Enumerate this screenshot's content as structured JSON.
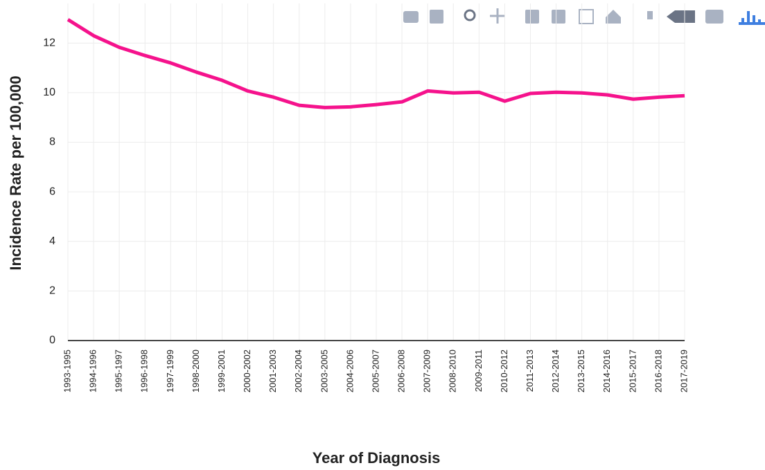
{
  "chart_data": {
    "type": "line",
    "x_label": "Year of Diagnosis",
    "y_label": "Incidence Rate per 100,000",
    "categories": [
      "1993-1995",
      "1994-1996",
      "1995-1997",
      "1996-1998",
      "1997-1999",
      "1998-2000",
      "1999-2001",
      "2000-2002",
      "2001-2003",
      "2002-2004",
      "2003-2005",
      "2004-2006",
      "2005-2007",
      "2006-2008",
      "2007-2009",
      "2008-2010",
      "2009-2011",
      "2010-2012",
      "2011-2013",
      "2012-2014",
      "2013-2015",
      "2014-2016",
      "2015-2017",
      "2016-2018",
      "2017-2019"
    ],
    "series": [
      {
        "name": "Incidence Rate",
        "color": "#f5128c",
        "values": [
          12.95,
          12.3,
          11.83,
          11.5,
          11.2,
          10.83,
          10.5,
          10.07,
          9.82,
          9.49,
          9.4,
          9.43,
          9.52,
          9.63,
          10.07,
          9.99,
          10.02,
          9.66,
          9.97,
          10.02,
          9.99,
          9.91,
          9.74,
          9.82,
          9.88
        ]
      }
    ],
    "ylim": [
      0,
      13.6
    ],
    "yticks": [
      0,
      2,
      4,
      6,
      8,
      10,
      12
    ],
    "grid": true
  }
}
